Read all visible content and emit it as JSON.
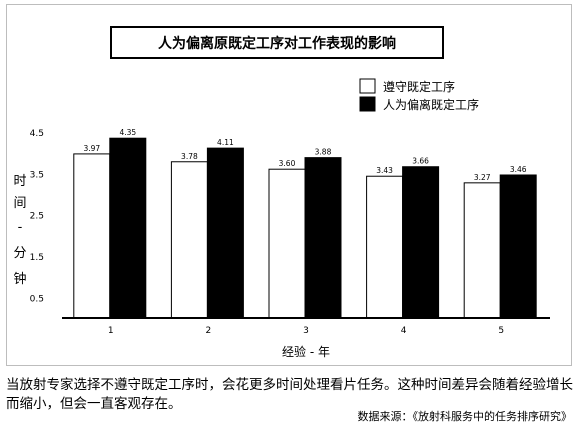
{
  "chart_data": {
    "type": "bar",
    "title": "人为偏离原既定工序对工作表现的影响",
    "xlabel": "经验 - 年",
    "ylabel": "时间 - 分钟",
    "categories": [
      "1",
      "2",
      "3",
      "4",
      "5"
    ],
    "series": [
      {
        "name": "遵守既定工序",
        "values": [
          3.97,
          3.78,
          3.6,
          3.43,
          3.27
        ],
        "color": "#ffffff"
      },
      {
        "name": "人为偏离既定工序",
        "values": [
          4.35,
          4.11,
          3.88,
          3.66,
          3.46
        ],
        "color": "#000000"
      }
    ],
    "value_labels": [
      [
        "3.97",
        "3.78",
        "3.60",
        "3.43",
        "3.27"
      ],
      [
        "4.35",
        "4.11",
        "3.88",
        "3.66",
        "3.46"
      ]
    ],
    "yticks": [
      "4.5",
      "3.5",
      "2.5",
      "1.5",
      "0.5"
    ],
    "ytick_values": [
      4.5,
      3.5,
      2.5,
      1.5,
      0.5
    ],
    "ylim": [
      0,
      4.6
    ],
    "legend_position": "top-right",
    "grid": false
  },
  "caption": "当放射专家选择不遵守既定工序时，会花更多时间处理看片任务。这种时间差异会随着经验增长而缩小，但会一直客观存在。",
  "source": "数据来源：《放射科服务中的任务排序研究》"
}
